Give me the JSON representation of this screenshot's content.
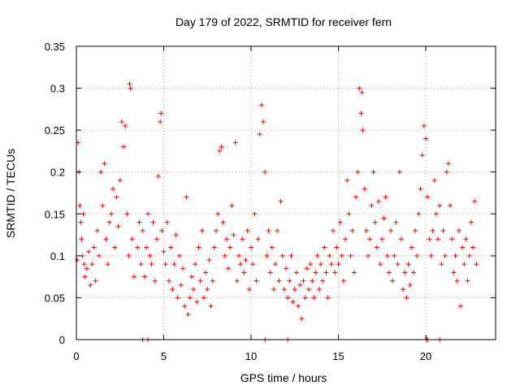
{
  "chart_data": {
    "type": "scatter",
    "title": "Day 179 of 2022, SRMTID for receiver fern",
    "xlabel": "GPS time / hours",
    "ylabel": "SRMTID / TECUs",
    "xlim": [
      0,
      24
    ],
    "ylim": [
      0,
      0.35
    ],
    "xticks": [
      0,
      5,
      10,
      15,
      20
    ],
    "xtick_labels": [
      "0",
      "5",
      "10",
      "15",
      "20"
    ],
    "yticks": [
      0,
      0.05,
      0.1,
      0.15,
      0.2,
      0.25,
      0.3,
      0.35
    ],
    "ytick_labels": [
      "0",
      "0.05",
      "0.1",
      "0.15",
      "0.2",
      "0.25",
      "0.3",
      "0.35"
    ],
    "grid": true,
    "marker": "+",
    "series_color": "#ff0000",
    "series": [
      {
        "values": [
          [
            0.05,
            0.095
          ],
          [
            0.1,
            0.235
          ],
          [
            0.15,
            0.2
          ],
          [
            0.2,
            0.16
          ],
          [
            0.25,
            0.14
          ],
          [
            0.3,
            0.12
          ],
          [
            0.35,
            0.1
          ],
          [
            0.4,
            0.15
          ],
          [
            0.45,
            0.09
          ],
          [
            0.5,
            0.075
          ],
          [
            0.6,
            0.085
          ],
          [
            0.7,
            0.105
          ],
          [
            0.8,
            0.065
          ],
          [
            0.9,
            0.09
          ],
          [
            1.0,
            0.11
          ],
          [
            1.1,
            0.07
          ],
          [
            1.2,
            0.13
          ],
          [
            1.3,
            0.1
          ],
          [
            1.4,
            0.2
          ],
          [
            1.5,
            0.16
          ],
          [
            1.6,
            0.21
          ],
          [
            1.7,
            0.12
          ],
          [
            1.8,
            0.09
          ],
          [
            1.9,
            0.14
          ],
          [
            2.0,
            0.15
          ],
          [
            2.1,
            0.18
          ],
          [
            2.2,
            0.11
          ],
          [
            2.3,
            0.17
          ],
          [
            2.4,
            0.135
          ],
          [
            2.5,
            0.19
          ],
          [
            2.6,
            0.26
          ],
          [
            2.7,
            0.23
          ],
          [
            2.8,
            0.255
          ],
          [
            2.9,
            0.15
          ],
          [
            3.0,
            0.1
          ],
          [
            3.05,
            0.305
          ],
          [
            3.1,
            0.3
          ],
          [
            3.2,
            0.12
          ],
          [
            3.3,
            0.075
          ],
          [
            3.5,
            0.11
          ],
          [
            3.6,
            0.14
          ],
          [
            3.7,
            0.09
          ],
          [
            3.8,
            0.13
          ],
          [
            3.9,
            0.075
          ],
          [
            4.0,
            0.11
          ],
          [
            4.1,
            0.15
          ],
          [
            4.2,
            0.1
          ],
          [
            4.3,
            0.09
          ],
          [
            4.4,
            0.14
          ],
          [
            4.5,
            0.07
          ],
          [
            4.6,
            0.12
          ],
          [
            4.7,
            0.195
          ],
          [
            4.8,
            0.26
          ],
          [
            4.85,
            0.27
          ],
          [
            4.9,
            0.13
          ],
          [
            5.0,
            0.105
          ],
          [
            5.1,
            0.09
          ],
          [
            5.2,
            0.14
          ],
          [
            5.3,
            0.07
          ],
          [
            5.4,
            0.11
          ],
          [
            5.5,
            0.06
          ],
          [
            5.6,
            0.09
          ],
          [
            5.7,
            0.125
          ],
          [
            5.8,
            0.05
          ],
          [
            5.9,
            0.1
          ],
          [
            6.0,
            0.065
          ],
          [
            6.1,
            0.085
          ],
          [
            6.2,
            0.04
          ],
          [
            6.3,
            0.17
          ],
          [
            6.4,
            0.03
          ],
          [
            6.5,
            0.05
          ],
          [
            6.6,
            0.075
          ],
          [
            6.7,
            0.06
          ],
          [
            6.8,
            0.09
          ],
          [
            6.9,
            0.045
          ],
          [
            7.0,
            0.11
          ],
          [
            7.1,
            0.07
          ],
          [
            7.2,
            0.13
          ],
          [
            7.3,
            0.05
          ],
          [
            7.4,
            0.08
          ],
          [
            7.5,
            0.06
          ],
          [
            7.6,
            0.095
          ],
          [
            7.7,
            0.04
          ],
          [
            7.8,
            0.07
          ],
          [
            7.9,
            0.11
          ],
          [
            8.0,
            0.13
          ],
          [
            8.1,
            0.15
          ],
          [
            8.2,
            0.225
          ],
          [
            8.3,
            0.23
          ],
          [
            8.4,
            0.14
          ],
          [
            8.5,
            0.1
          ],
          [
            8.6,
            0.12
          ],
          [
            8.7,
            0.085
          ],
          [
            8.8,
            0.11
          ],
          [
            8.9,
            0.16
          ],
          [
            9.0,
            0.125
          ],
          [
            9.1,
            0.235
          ],
          [
            9.2,
            0.07
          ],
          [
            9.3,
            0.1
          ],
          [
            9.4,
            0.09
          ],
          [
            9.5,
            0.12
          ],
          [
            9.6,
            0.08
          ],
          [
            9.7,
            0.095
          ],
          [
            9.8,
            0.13
          ],
          [
            9.9,
            0.06
          ],
          [
            10.0,
            0.11
          ],
          [
            10.1,
            0.09
          ],
          [
            10.2,
            0.15
          ],
          [
            10.3,
            0.07
          ],
          [
            10.4,
            0.12
          ],
          [
            10.5,
            0.245
          ],
          [
            10.6,
            0.28
          ],
          [
            10.7,
            0.26
          ],
          [
            10.8,
            0.2
          ],
          [
            10.9,
            0.1
          ],
          [
            11.0,
            0.13
          ],
          [
            11.1,
            0.08
          ],
          [
            11.2,
            0.11
          ],
          [
            11.3,
            0.06
          ],
          [
            11.4,
            0.09
          ],
          [
            11.5,
            0.13
          ],
          [
            11.6,
            0.07
          ],
          [
            11.7,
            0.165
          ],
          [
            11.8,
            0.1
          ],
          [
            11.9,
            0.06
          ],
          [
            12.0,
            0.085
          ],
          [
            12.1,
            0.05
          ],
          [
            12.2,
            0.07
          ],
          [
            12.3,
            0.1
          ],
          [
            12.4,
            0.045
          ],
          [
            12.5,
            0.06
          ],
          [
            12.6,
            0.08
          ],
          [
            12.7,
            0.04
          ],
          [
            12.8,
            0.065
          ],
          [
            12.9,
            0.025
          ],
          [
            13.0,
            0.07
          ],
          [
            13.1,
            0.05
          ],
          [
            13.2,
            0.085
          ],
          [
            13.3,
            0.06
          ],
          [
            13.4,
            0.09
          ],
          [
            13.5,
            0.07
          ],
          [
            13.6,
            0.05
          ],
          [
            13.7,
            0.08
          ],
          [
            13.8,
            0.1
          ],
          [
            13.9,
            0.06
          ],
          [
            14.0,
            0.09
          ],
          [
            14.1,
            0.07
          ],
          [
            14.2,
            0.11
          ],
          [
            14.3,
            0.08
          ],
          [
            14.4,
            0.05
          ],
          [
            14.5,
            0.1
          ],
          [
            14.6,
            0.09
          ],
          [
            14.7,
            0.13
          ],
          [
            14.8,
            0.08
          ],
          [
            14.9,
            0.11
          ],
          [
            15.0,
            0.09
          ],
          [
            15.1,
            0.14
          ],
          [
            15.2,
            0.1
          ],
          [
            15.3,
            0.07
          ],
          [
            15.4,
            0.12
          ],
          [
            15.5,
            0.19
          ],
          [
            15.6,
            0.15
          ],
          [
            15.7,
            0.1
          ],
          [
            15.8,
            0.13
          ],
          [
            15.9,
            0.08
          ],
          [
            16.0,
            0.17
          ],
          [
            16.1,
            0.2
          ],
          [
            16.2,
            0.3
          ],
          [
            16.3,
            0.27
          ],
          [
            16.35,
            0.295
          ],
          [
            16.4,
            0.25
          ],
          [
            16.5,
            0.18
          ],
          [
            16.6,
            0.13
          ],
          [
            16.7,
            0.1
          ],
          [
            16.8,
            0.12
          ],
          [
            16.9,
            0.16
          ],
          [
            17.0,
            0.2
          ],
          [
            17.1,
            0.14
          ],
          [
            17.2,
            0.11
          ],
          [
            17.3,
            0.165
          ],
          [
            17.4,
            0.09
          ],
          [
            17.5,
            0.12
          ],
          [
            17.6,
            0.145
          ],
          [
            17.7,
            0.17
          ],
          [
            17.8,
            0.1
          ],
          [
            17.9,
            0.08
          ],
          [
            18.0,
            0.13
          ],
          [
            18.1,
            0.07
          ],
          [
            18.2,
            0.1
          ],
          [
            18.3,
            0.14
          ],
          [
            18.4,
            0.09
          ],
          [
            18.5,
            0.2
          ],
          [
            18.6,
            0.12
          ],
          [
            18.7,
            0.06
          ],
          [
            18.8,
            0.08
          ],
          [
            18.9,
            0.05
          ],
          [
            19.0,
            0.09
          ],
          [
            19.1,
            0.065
          ],
          [
            19.2,
            0.11
          ],
          [
            19.3,
            0.08
          ],
          [
            19.4,
            0.13
          ],
          [
            19.5,
            0.1
          ],
          [
            19.6,
            0.15
          ],
          [
            19.7,
            0.18
          ],
          [
            19.8,
            0.22
          ],
          [
            19.9,
            0.255
          ],
          [
            20.0,
            0.24
          ],
          [
            20.1,
            0.17
          ],
          [
            20.2,
            0.12
          ],
          [
            20.3,
            0.1
          ],
          [
            20.4,
            0.13
          ],
          [
            20.5,
            0.19
          ],
          [
            20.6,
            0.15
          ],
          [
            20.7,
            0.12
          ],
          [
            20.8,
            0.16
          ],
          [
            20.9,
            0.09
          ],
          [
            21.0,
            0.13
          ],
          [
            21.1,
            0.1
          ],
          [
            21.2,
            0.2
          ],
          [
            21.3,
            0.21
          ],
          [
            21.4,
            0.16
          ],
          [
            21.5,
            0.12
          ],
          [
            21.6,
            0.08
          ],
          [
            21.7,
            0.1
          ],
          [
            21.8,
            0.07
          ],
          [
            21.9,
            0.13
          ],
          [
            22.0,
            0.04
          ],
          [
            22.1,
            0.11
          ],
          [
            22.2,
            0.09
          ],
          [
            22.3,
            0.12
          ],
          [
            22.4,
            0.07
          ],
          [
            22.5,
            0.1
          ],
          [
            22.6,
            0.14
          ],
          [
            22.7,
            0.11
          ],
          [
            22.8,
            0.165
          ],
          [
            22.9,
            0.09
          ],
          [
            3.8,
            0.0
          ],
          [
            4.1,
            0.0
          ],
          [
            10.8,
            0.0
          ],
          [
            12.1,
            0.0
          ],
          [
            20.05,
            0.0
          ],
          [
            20.1,
            0.0
          ],
          [
            20.8,
            0.0
          ]
        ]
      }
    ]
  }
}
